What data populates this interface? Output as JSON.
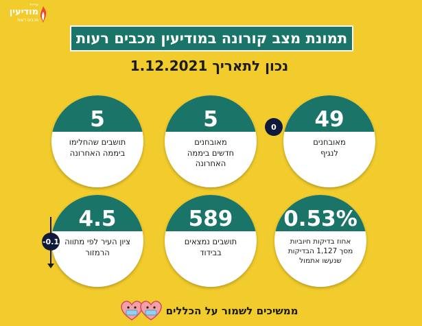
{
  "logo": {
    "top_text": "עיריית",
    "main_text": "מודיעין",
    "sub_text": "מכבים רעות"
  },
  "header": {
    "title": "תמונת מצב קורונה במודיעין מכבים רעות",
    "date_line": "נכון לתאריך  1.12.2021"
  },
  "cards": [
    {
      "value": "49",
      "label": [
        "מאובחנים",
        "לנגיף"
      ]
    },
    {
      "value": "5",
      "label": [
        "מאובחנים",
        "חדשים ביממה",
        "האחרונה"
      ]
    },
    {
      "value": "5",
      "label": [
        "תושבים שהחלימו",
        "ביממה האחרונה"
      ]
    },
    {
      "value": "0.53%",
      "label": [
        "אחוז בדיקות חיוביות",
        "מסך 1,127 הבדיקות",
        "שנעשו אתמול"
      ]
    },
    {
      "value": "589",
      "label": [
        "תושבים נמצאים",
        "בבידוד"
      ]
    },
    {
      "value": "4.5",
      "label": [
        "ציון העיר לפי מתווה",
        "הרמזור"
      ]
    }
  ],
  "badges": {
    "cases_change": "0",
    "score_change": "-0.1"
  },
  "footer": {
    "text": "ממשיכים לשמור על הכללים"
  },
  "colors": {
    "background": "#f2cc2c",
    "teal": "#1a7468",
    "badge": "#0f1a3a",
    "heart": "#f4a0a8"
  }
}
